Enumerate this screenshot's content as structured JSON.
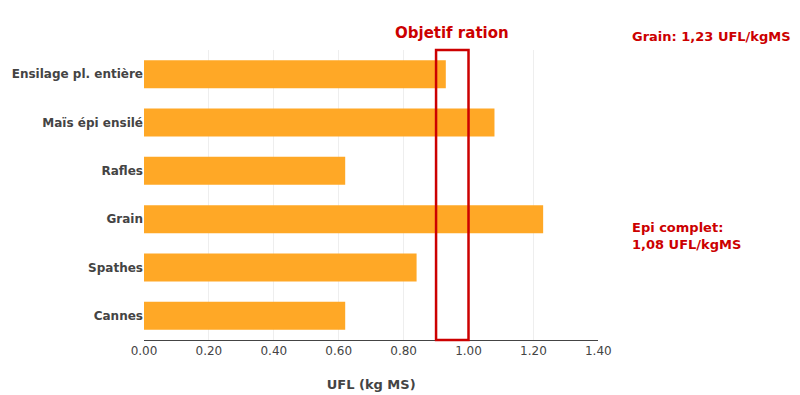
{
  "chart_data": {
    "type": "bar",
    "orientation": "horizontal",
    "categories": [
      "Cannes",
      "Spathes",
      "Grain",
      "Rafles",
      "Maïs épi ensilé",
      "Ensilage pl. entière"
    ],
    "values": [
      0.62,
      0.84,
      1.23,
      0.62,
      1.08,
      0.93
    ],
    "color": "#FFA826",
    "xlabel": "UFL (kg MS)",
    "xlim": [
      0,
      1.4
    ],
    "xticks": [
      {
        "value": 0.0,
        "label": "0.00"
      },
      {
        "value": 0.2,
        "label": "0.20"
      },
      {
        "value": 0.4,
        "label": "0.40"
      },
      {
        "value": 0.6,
        "label": "0.60"
      },
      {
        "value": 0.8,
        "label": "0.80"
      },
      {
        "value": 1.0,
        "label": "1.00"
      },
      {
        "value": 1.2,
        "label": "1.20"
      },
      {
        "value": 1.4,
        "label": "1.40"
      }
    ],
    "grid": true,
    "target": {
      "label": "Objetif ration",
      "range": [
        0.9,
        1.0
      ],
      "color": "#CC0000"
    },
    "annotations": [
      "Grain: 1,23 UFL/kgMS",
      "Epi complet:\n1,08 UFL/kgMS"
    ]
  }
}
